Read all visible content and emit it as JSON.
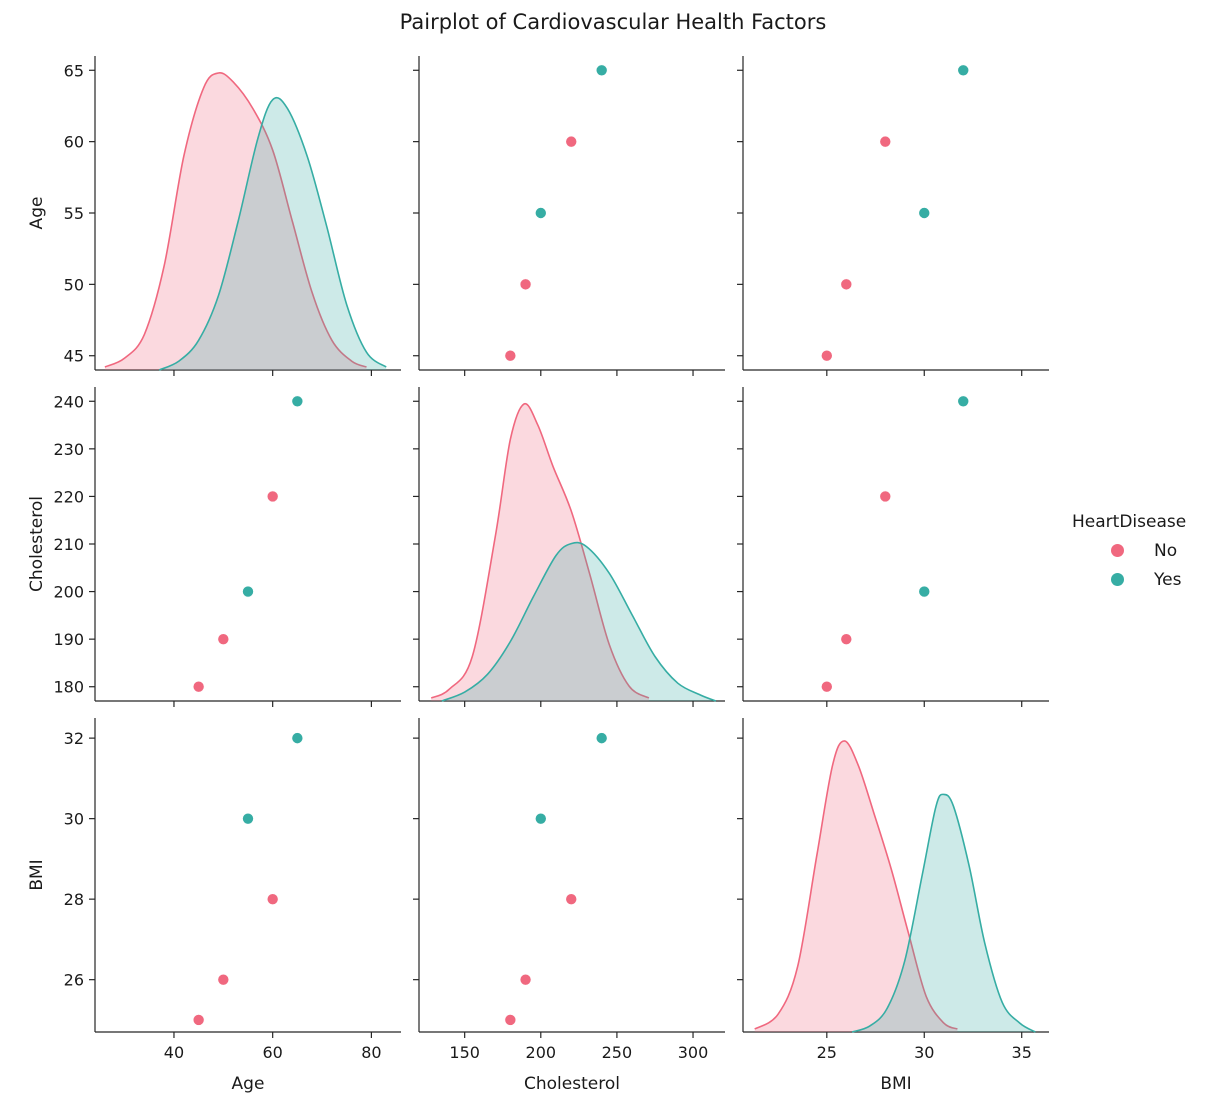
{
  "title": "Pairplot of Cardiovascular Health Factors",
  "legend": {
    "title": "HeartDisease",
    "items": [
      {
        "label": "No",
        "color": "#f0687f"
      },
      {
        "label": "Yes",
        "color": "#36ada4"
      }
    ]
  },
  "chart_data": {
    "type": "scatter",
    "kind": "pairplot",
    "variables": [
      "Age",
      "Cholesterol",
      "BMI"
    ],
    "hue": "HeartDisease",
    "axes": {
      "Age": {
        "range": [
          24,
          86
        ],
        "ticks": [
          40,
          60,
          80
        ],
        "diag_range": [
          44.0,
          66.0
        ],
        "diag_ticks": [
          45,
          50,
          55,
          60,
          65
        ]
      },
      "Cholesterol": {
        "range": [
          120,
          321
        ],
        "ticks": [
          150,
          200,
          250,
          300
        ],
        "diag_range": [
          177,
          243
        ],
        "diag_ticks": [
          180,
          190,
          200,
          210,
          220,
          230,
          240
        ]
      },
      "BMI": {
        "range": [
          20.7,
          36.4
        ],
        "ticks": [
          25,
          30,
          35
        ],
        "diag_range": [
          24.7,
          32.5
        ],
        "diag_ticks": [
          26,
          28,
          30,
          32
        ]
      }
    },
    "series": [
      {
        "name": "No",
        "color": "#f0687f",
        "points": [
          {
            "Age": 45,
            "Cholesterol": 180,
            "BMI": 25
          },
          {
            "Age": 50,
            "Cholesterol": 190,
            "BMI": 26
          },
          {
            "Age": 60,
            "Cholesterol": 220,
            "BMI": 28
          }
        ]
      },
      {
        "name": "Yes",
        "color": "#36ada4",
        "points": [
          {
            "Age": 55,
            "Cholesterol": 200,
            "BMI": 30
          },
          {
            "Age": 65,
            "Cholesterol": 240,
            "BMI": 32
          }
        ]
      }
    ],
    "kde": {
      "Age": {
        "No": {
          "x": [
            26,
            30,
            34,
            38,
            42,
            46,
            49,
            52,
            56,
            60,
            64,
            68,
            72,
            76,
            79
          ],
          "density": [
            0.01,
            0.04,
            0.12,
            0.35,
            0.72,
            0.95,
            1.0,
            0.97,
            0.88,
            0.74,
            0.5,
            0.26,
            0.1,
            0.03,
            0.01
          ]
        },
        "Yes": {
          "x": [
            37,
            41,
            45,
            49,
            53,
            57,
            60,
            63,
            67,
            71,
            75,
            79,
            83
          ],
          "density": [
            0.0,
            0.03,
            0.1,
            0.25,
            0.5,
            0.78,
            0.91,
            0.88,
            0.72,
            0.48,
            0.22,
            0.06,
            0.01
          ]
        }
      },
      "Cholesterol": {
        "No": {
          "x": [
            128,
            140,
            155,
            170,
            180,
            189,
            198,
            208,
            220,
            232,
            245,
            258,
            271
          ],
          "density": [
            0.01,
            0.04,
            0.15,
            0.55,
            0.88,
            1.0,
            0.93,
            0.79,
            0.64,
            0.43,
            0.19,
            0.05,
            0.01
          ]
        },
        "Yes": {
          "x": [
            135,
            150,
            165,
            180,
            195,
            210,
            220,
            230,
            245,
            260,
            275,
            290,
            305,
            315
          ],
          "density": [
            0.0,
            0.03,
            0.09,
            0.2,
            0.35,
            0.49,
            0.53,
            0.52,
            0.43,
            0.29,
            0.15,
            0.06,
            0.02,
            0.0
          ]
        }
      },
      "BMI": {
        "No": {
          "x": [
            21.3,
            22.5,
            23.5,
            24.5,
            25.3,
            25.9,
            26.6,
            27.4,
            28.3,
            29.2,
            30.1,
            31.0,
            31.7
          ],
          "density": [
            0.01,
            0.06,
            0.22,
            0.6,
            0.9,
            0.98,
            0.9,
            0.74,
            0.55,
            0.33,
            0.12,
            0.03,
            0.01
          ]
        },
        "Yes": {
          "x": [
            26.3,
            27.2,
            28.1,
            29.0,
            29.9,
            30.6,
            31.0,
            31.5,
            32.3,
            33.1,
            34.0,
            34.9,
            35.7
          ],
          "density": [
            0.0,
            0.02,
            0.08,
            0.24,
            0.53,
            0.76,
            0.8,
            0.76,
            0.56,
            0.3,
            0.1,
            0.03,
            0.0
          ]
        }
      }
    },
    "grid": false,
    "legend_position": "right"
  }
}
